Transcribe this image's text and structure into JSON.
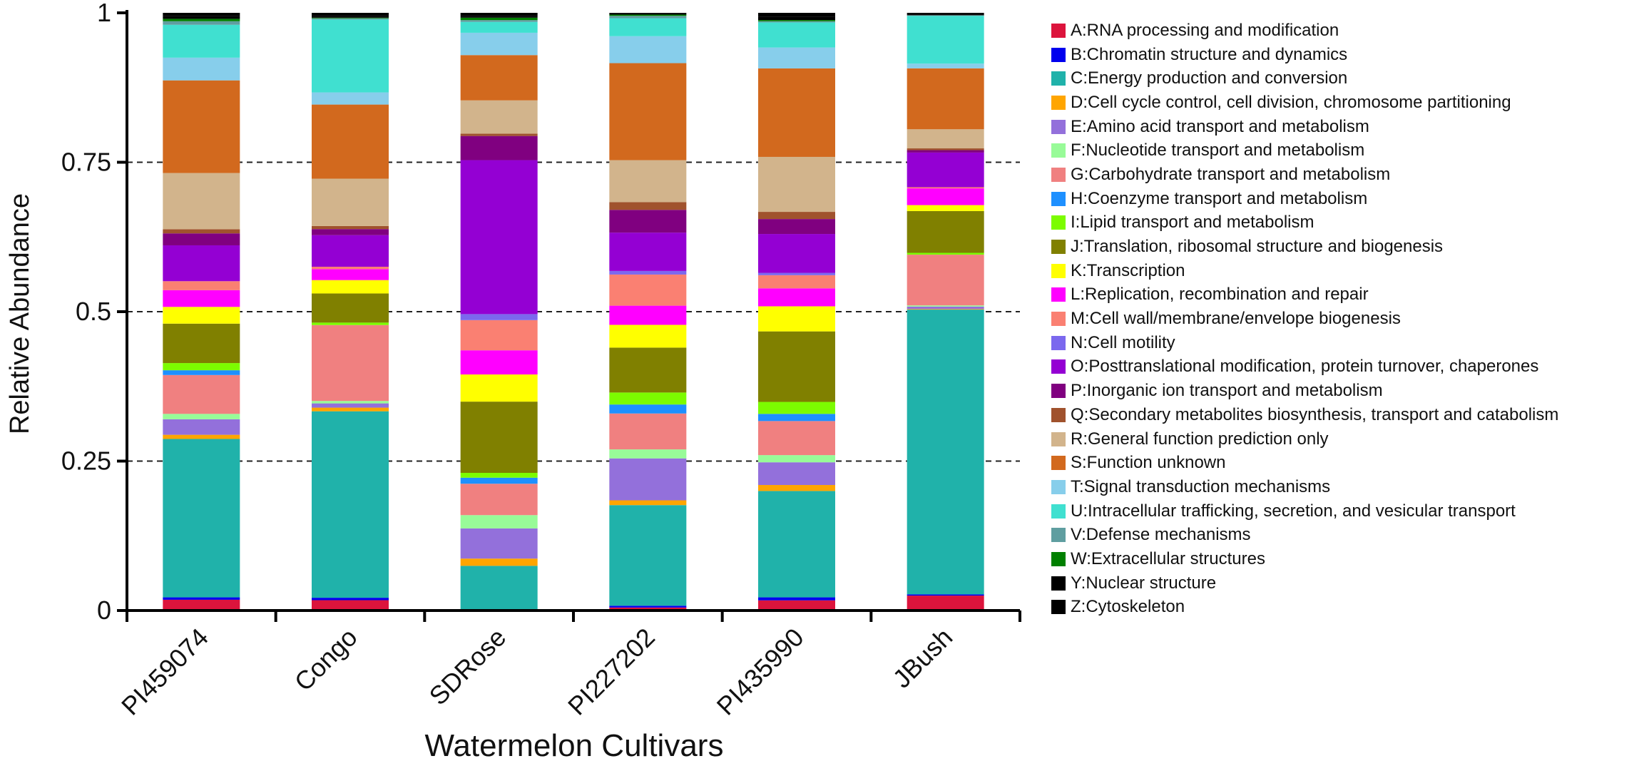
{
  "chart_data": {
    "type": "bar",
    "stacked": true,
    "xlabel": "Watermelon Cultivars",
    "ylabel": "Relative Abundance",
    "ylim": [
      0,
      1
    ],
    "yticks": [
      "0",
      "0.25",
      "0.5",
      "0.75",
      "1"
    ],
    "gridlines": "dashed at 0.25, 0.5, 0.75",
    "legend_position": "right",
    "categories": [
      "PI459074",
      "Congo",
      "SDRose",
      "PI227202",
      "PI435990",
      "JBush"
    ],
    "series": [
      {
        "name": "A:RNA processing and modification",
        "color": "#DC143C",
        "values": [
          0.018,
          0.017,
          0.0,
          0.005,
          0.017,
          0.025
        ]
      },
      {
        "name": "B:Chromatin structure and dynamics",
        "color": "#0000EE",
        "values": [
          0.004,
          0.004,
          0.0,
          0.003,
          0.005,
          0.002
        ]
      },
      {
        "name": "C:Energy production and conversion",
        "color": "#20B2AA",
        "values": [
          0.265,
          0.307,
          0.074,
          0.168,
          0.178,
          0.477
        ]
      },
      {
        "name": "D:Cell cycle control, cell division, chromosome partitioning",
        "color": "#FFA500",
        "values": [
          0.007,
          0.006,
          0.012,
          0.008,
          0.01,
          0.001
        ]
      },
      {
        "name": "E:Amino acid transport and metabolism",
        "color": "#9370DB",
        "values": [
          0.026,
          0.007,
          0.05,
          0.07,
          0.038,
          0.004
        ]
      },
      {
        "name": "F:Nucleotide transport and metabolism",
        "color": "#98FB98",
        "values": [
          0.009,
          0.004,
          0.022,
          0.015,
          0.012,
          0.002
        ]
      },
      {
        "name": "G:Carbohydrate transport and metabolism",
        "color": "#F08080",
        "values": [
          0.065,
          0.125,
          0.052,
          0.06,
          0.057,
          0.085
        ]
      },
      {
        "name": "H:Coenzyme transport and metabolism",
        "color": "#1E90FF",
        "values": [
          0.008,
          0.0,
          0.01,
          0.015,
          0.012,
          0.0
        ]
      },
      {
        "name": "I:Lipid transport and metabolism",
        "color": "#7CFC00",
        "values": [
          0.012,
          0.004,
          0.008,
          0.02,
          0.02,
          0.003
        ]
      },
      {
        "name": "J:Translation, ribosomal structure and biogenesis",
        "color": "#808000",
        "values": [
          0.066,
          0.048,
          0.118,
          0.075,
          0.118,
          0.07
        ]
      },
      {
        "name": "K:Transcription",
        "color": "#FFFF00",
        "values": [
          0.028,
          0.022,
          0.045,
          0.038,
          0.042,
          0.01
        ]
      },
      {
        "name": "L:Replication, recombination and repair",
        "color": "#FF00FF",
        "values": [
          0.028,
          0.018,
          0.04,
          0.032,
          0.03,
          0.028
        ]
      },
      {
        "name": "M:Cell wall/membrane/envelope biogenesis",
        "color": "#FA8072",
        "values": [
          0.015,
          0.004,
          0.05,
          0.052,
          0.022,
          0.002
        ]
      },
      {
        "name": "N:Cell motility",
        "color": "#7B68EE",
        "values": [
          0.0,
          0.0,
          0.01,
          0.006,
          0.004,
          0.0
        ]
      },
      {
        "name": "O:Posttranslational modification, protein turnover, chaperones",
        "color": "#9400D3",
        "values": [
          0.06,
          0.052,
          0.255,
          0.064,
          0.065,
          0.058
        ]
      },
      {
        "name": "P:Inorganic ion transport and metabolism",
        "color": "#800080",
        "values": [
          0.02,
          0.01,
          0.04,
          0.038,
          0.025,
          0.004
        ]
      },
      {
        "name": "Q:Secondary metabolites biosynthesis, transport and catabolism",
        "color": "#A0522D",
        "values": [
          0.007,
          0.005,
          0.004,
          0.013,
          0.012,
          0.003
        ]
      },
      {
        "name": "R:General function prediction only",
        "color": "#D2B48C",
        "values": [
          0.094,
          0.078,
          0.055,
          0.07,
          0.092,
          0.032
        ]
      },
      {
        "name": "S:Function unknown",
        "color": "#D2691E",
        "values": [
          0.155,
          0.122,
          0.075,
          0.162,
          0.148,
          0.102
        ]
      },
      {
        "name": "T:Signal transduction mechanisms",
        "color": "#87CEEB",
        "values": [
          0.038,
          0.02,
          0.037,
          0.045,
          0.035,
          0.008
        ]
      },
      {
        "name": "U:Intracellular trafficking, secretion, and vesicular transport",
        "color": "#40E0D0",
        "values": [
          0.055,
          0.12,
          0.018,
          0.03,
          0.042,
          0.08
        ]
      },
      {
        "name": "V:Defense mechanisms",
        "color": "#5F9EA0",
        "values": [
          0.006,
          0.002,
          0.003,
          0.004,
          0.002,
          0.001
        ]
      },
      {
        "name": "W:Extracellular structures",
        "color": "#008000",
        "values": [
          0.004,
          0.001,
          0.004,
          0.002,
          0.002,
          0.0
        ]
      },
      {
        "name": "Y:Nuclear structure",
        "color": "#000000",
        "values": [
          0.005,
          0.003,
          0.003,
          0.002,
          0.005,
          0.002
        ]
      },
      {
        "name": "Z:Cytoskeleton",
        "color": "#000000",
        "values": [
          0.005,
          0.005,
          0.005,
          0.001,
          0.007,
          0.002
        ]
      }
    ]
  }
}
